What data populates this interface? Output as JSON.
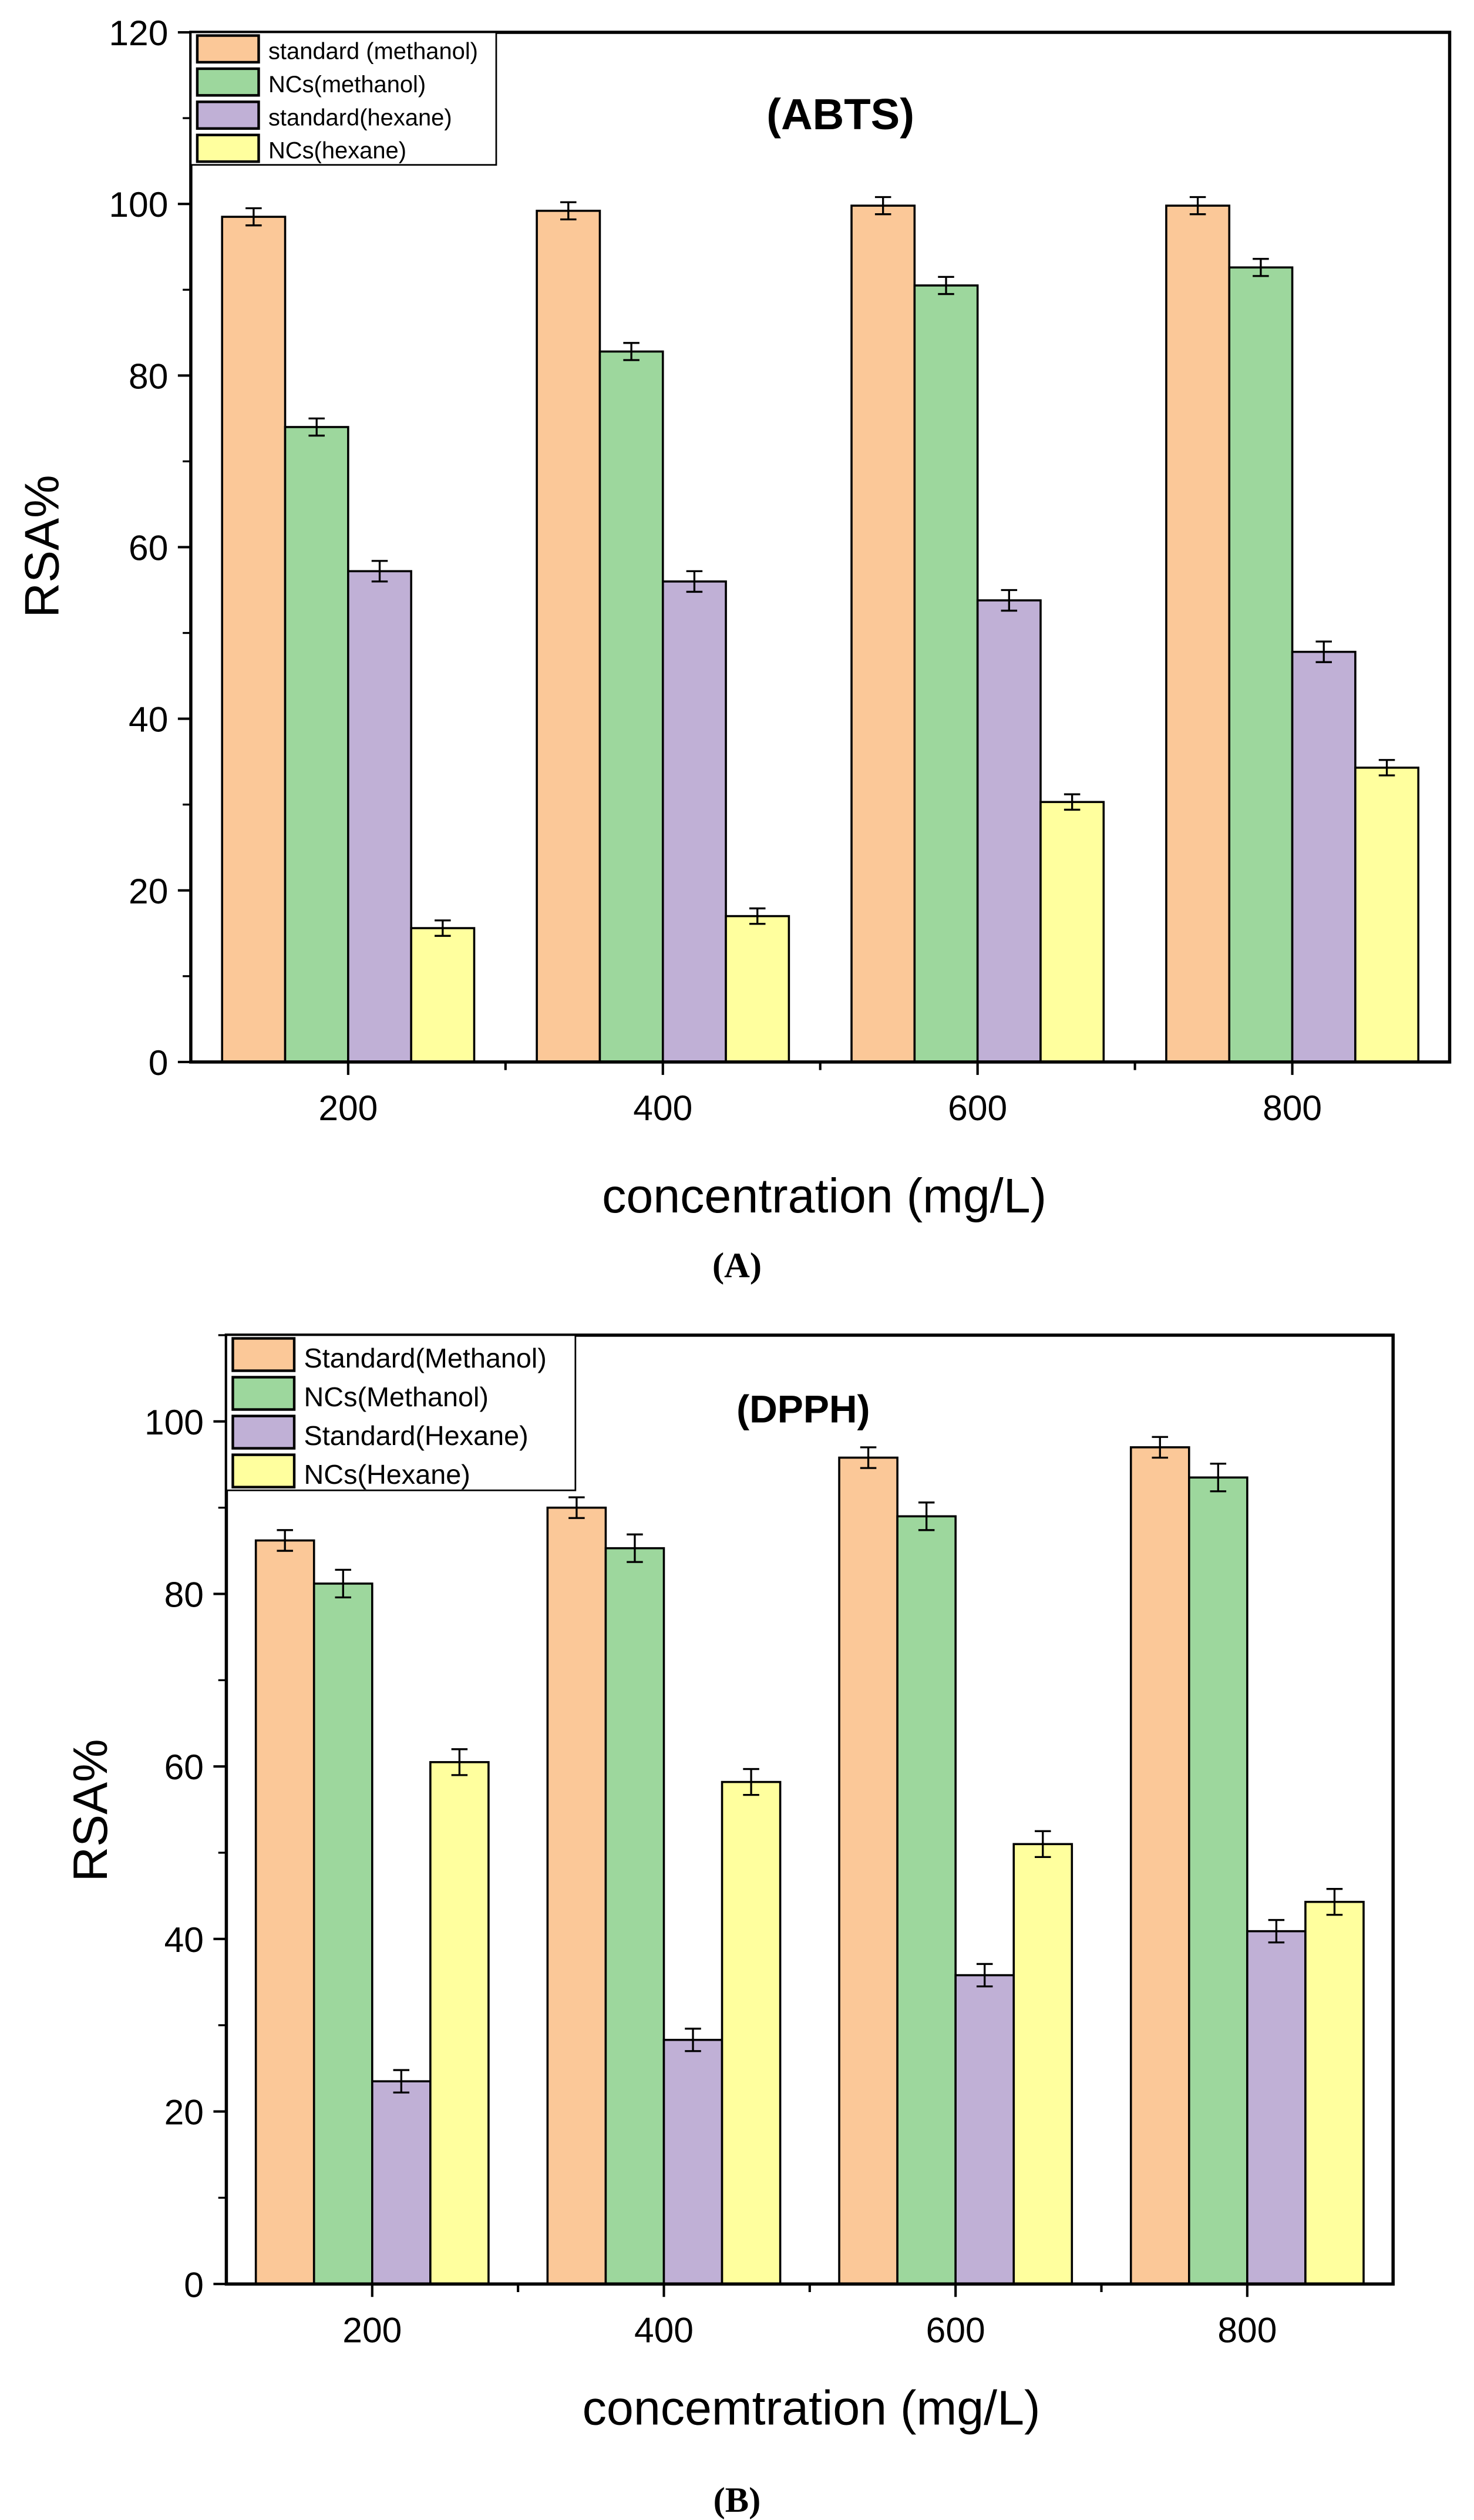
{
  "colors": [
    "#fbc898",
    "#9dd79d",
    "#c0b0d6",
    "#ffff9e"
  ],
  "chart_data": [
    {
      "type": "bar",
      "panel_label": "(A)",
      "title": "(ABTS)",
      "xlabel": "concentration (mg/L)",
      "ylabel": "RSA%",
      "ylim": [
        0,
        120
      ],
      "yticks": [
        0,
        20,
        40,
        60,
        80,
        100,
        120
      ],
      "categories": [
        "200",
        "400",
        "600",
        "800"
      ],
      "legend_position": "top-left",
      "series": [
        {
          "name": "standard (methanol)",
          "values": [
            98.5,
            99.2,
            99.8,
            99.8
          ],
          "errors": [
            1.0,
            1.0,
            1.0,
            1.0
          ]
        },
        {
          "name": "NCs(methanol)",
          "values": [
            74.0,
            82.8,
            90.5,
            92.6
          ],
          "errors": [
            1.0,
            1.0,
            1.0,
            1.0
          ]
        },
        {
          "name": "standard(hexane)",
          "values": [
            57.2,
            56.0,
            53.8,
            47.8
          ],
          "errors": [
            1.2,
            1.2,
            1.2,
            1.2
          ]
        },
        {
          "name": "NCs(hexane)",
          "values": [
            15.6,
            17.0,
            30.3,
            34.3
          ],
          "errors": [
            0.9,
            0.9,
            0.9,
            0.9
          ]
        }
      ]
    },
    {
      "type": "bar",
      "panel_label": "(B)",
      "title": "(DPPH)",
      "xlabel": "concemtration (mg/L)",
      "ylabel": "RSA%",
      "ylim": [
        0,
        110
      ],
      "yticks": [
        0,
        20,
        40,
        60,
        80,
        100
      ],
      "categories": [
        "200",
        "400",
        "600",
        "800"
      ],
      "legend_position": "top-left",
      "series": [
        {
          "name": "Standard(Methanol)",
          "values": [
            86.2,
            90.0,
            95.8,
            97.0
          ],
          "errors": [
            1.2,
            1.2,
            1.2,
            1.2
          ]
        },
        {
          "name": "NCs(Methanol)",
          "values": [
            81.2,
            85.3,
            89.0,
            93.5
          ],
          "errors": [
            1.6,
            1.6,
            1.6,
            1.6
          ]
        },
        {
          "name": "Standard(Hexane)",
          "values": [
            23.5,
            28.3,
            35.8,
            40.9
          ],
          "errors": [
            1.3,
            1.3,
            1.3,
            1.3
          ]
        },
        {
          "name": "NCs(Hexane)",
          "values": [
            60.5,
            58.2,
            51.0,
            44.3
          ],
          "errors": [
            1.5,
            1.5,
            1.5,
            1.5
          ]
        }
      ]
    }
  ]
}
